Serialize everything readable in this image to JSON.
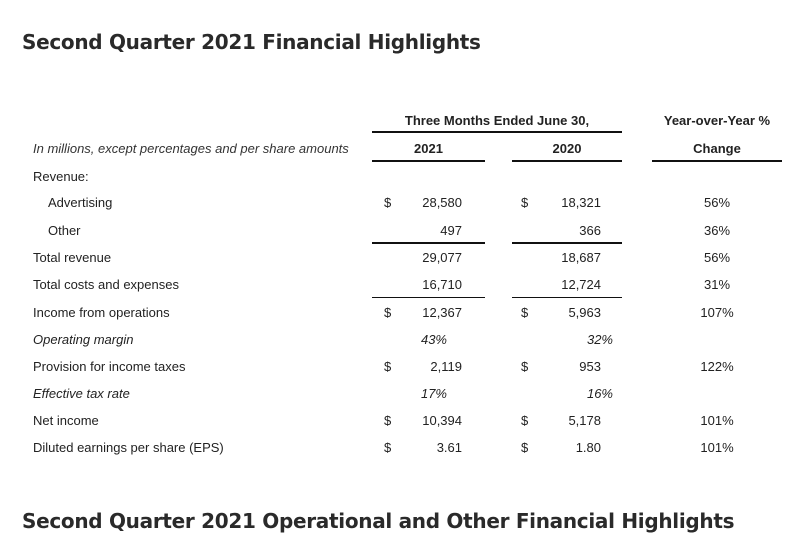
{
  "title": "Second Quarter 2021 Financial Highlights",
  "next_section_title": "Second Quarter 2021 Operational and Other Financial Highlights",
  "table": {
    "header_period": "Three Months Ended June 30,",
    "header_yoy": "Year-over-Year %",
    "header_change": "Change",
    "units_note": "In millions, except percentages and per share amounts",
    "col_2021": "2021",
    "col_2020": "2020",
    "rows": [
      {
        "label": "Revenue:",
        "cur1": "",
        "v2021": "",
        "cur2": "",
        "v2020": "",
        "yoy": ""
      },
      {
        "label": "Advertising",
        "cur1": "$",
        "v2021": "28,580",
        "cur2": "$",
        "v2020": "18,321",
        "yoy": "56%"
      },
      {
        "label": "Other",
        "cur1": "",
        "v2021": "497",
        "cur2": "",
        "v2020": "366",
        "yoy": "36%"
      },
      {
        "label": "Total revenue",
        "cur1": "",
        "v2021": "29,077",
        "cur2": "",
        "v2020": "18,687",
        "yoy": "56%"
      },
      {
        "label": "Total costs and expenses",
        "cur1": "",
        "v2021": "16,710",
        "cur2": "",
        "v2020": "12,724",
        "yoy": "31%"
      },
      {
        "label": "Income from operations",
        "cur1": "$",
        "v2021": "12,367",
        "cur2": "$",
        "v2020": "5,963",
        "yoy": "107%"
      },
      {
        "label": "Operating margin",
        "cur1": "",
        "v2021": "43%",
        "cur2": "",
        "v2020": "32%",
        "yoy": ""
      },
      {
        "label": "Provision for income taxes",
        "cur1": "$",
        "v2021": "2,119",
        "cur2": "$",
        "v2020": "953",
        "yoy": "122%"
      },
      {
        "label": "Effective tax rate",
        "cur1": "",
        "v2021": "17%",
        "cur2": "",
        "v2020": "16%",
        "yoy": ""
      },
      {
        "label": "Net income",
        "cur1": "$",
        "v2021": "10,394",
        "cur2": "$",
        "v2020": "5,178",
        "yoy": "101%"
      },
      {
        "label": "Diluted earnings per share (EPS)",
        "cur1": "$",
        "v2021": "3.61",
        "cur2": "$",
        "v2020": "1.80",
        "yoy": "101%"
      }
    ]
  }
}
